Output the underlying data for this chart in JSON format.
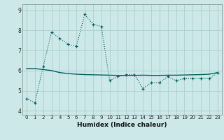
{
  "xlabel": "Humidex (Indice chaleur)",
  "ylabel": "",
  "bg_color": "#cce8e8",
  "grid_color": "#aacfcf",
  "line_color": "#006060",
  "x_data": [
    0,
    1,
    2,
    3,
    4,
    5,
    6,
    7,
    8,
    9,
    10,
    11,
    12,
    13,
    14,
    15,
    16,
    17,
    18,
    19,
    20,
    21,
    22,
    23
  ],
  "y_dotted": [
    4.6,
    4.4,
    6.2,
    7.9,
    7.6,
    7.3,
    7.2,
    8.8,
    8.3,
    8.2,
    5.5,
    5.7,
    5.8,
    5.8,
    5.1,
    5.4,
    5.4,
    5.7,
    5.5,
    5.6,
    5.6,
    5.6,
    5.6,
    5.9
  ],
  "y_solid": [
    6.1,
    6.1,
    6.05,
    6.0,
    5.9,
    5.85,
    5.82,
    5.8,
    5.79,
    5.78,
    5.77,
    5.76,
    5.76,
    5.76,
    5.77,
    5.76,
    5.76,
    5.77,
    5.77,
    5.78,
    5.79,
    5.8,
    5.82,
    5.9
  ],
  "ylim": [
    3.8,
    9.3
  ],
  "yticks": [
    4,
    5,
    6,
    7,
    8,
    9
  ],
  "xlim": [
    -0.5,
    23.5
  ],
  "xtick_fontsize": 5.0,
  "ytick_fontsize": 5.5,
  "xlabel_fontsize": 6.5
}
